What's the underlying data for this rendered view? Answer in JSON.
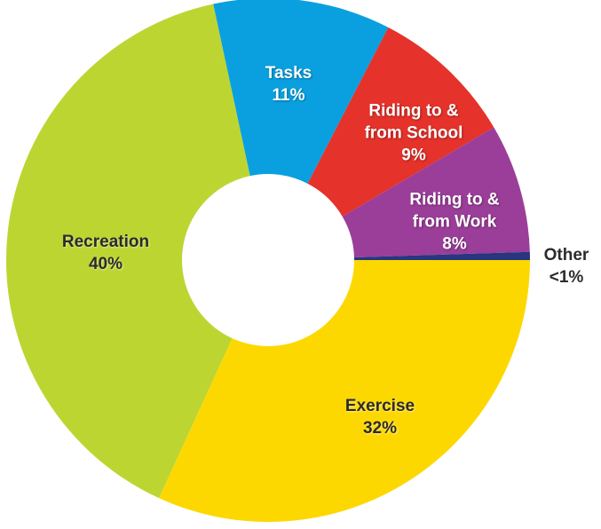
{
  "chart_data": {
    "type": "donut",
    "categories": [
      "Exercise",
      "Recreation",
      "Tasks",
      "Riding to & from School",
      "Riding to & from Work",
      "Other"
    ],
    "values": [
      32,
      40,
      11,
      9,
      8,
      0.5
    ],
    "value_labels": [
      "32%",
      "40%",
      "11%",
      "9%",
      "8%",
      "<1%"
    ],
    "colors": [
      "#fdd800",
      "#bdd531",
      "#0aa0e0",
      "#e5322a",
      "#9b3e99",
      "#2a3580"
    ]
  }
}
